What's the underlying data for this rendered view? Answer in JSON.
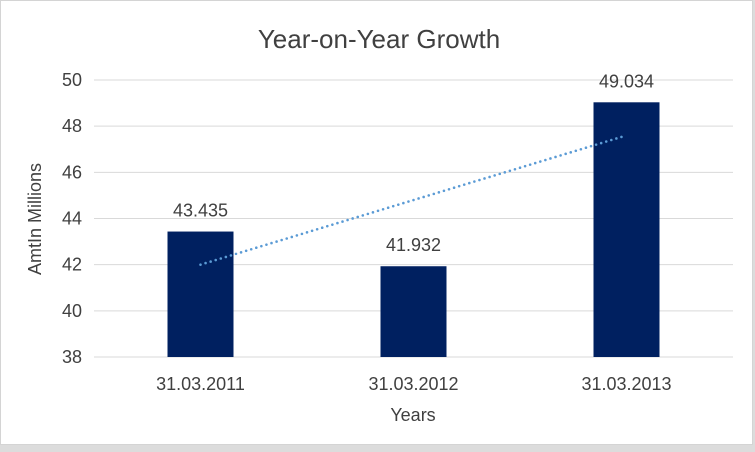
{
  "chart_data": {
    "type": "bar",
    "title": "Year-on-Year Growth",
    "xlabel": "Years",
    "ylabel": "AmtIn Millions",
    "categories": [
      "31.03.2011",
      "31.03.2012",
      "31.03.2013"
    ],
    "values": [
      43.435,
      41.932,
      49.034
    ],
    "value_labels": [
      "43.435",
      "41.932",
      "49.034"
    ],
    "ylim": [
      38,
      50
    ],
    "ytick_step": 2,
    "ytick_labels": [
      "38",
      "40",
      "42",
      "44",
      "46",
      "48",
      "50"
    ],
    "grid": true,
    "legend": "none",
    "trendline": {
      "type": "linear",
      "style": "dotted"
    },
    "colors": {
      "bar": "#002060",
      "trendline": "#5b9bd5",
      "gridline": "#d9d9d9",
      "text": "#404040",
      "chart_background": "#ffffff",
      "chart_border": "#d4d4d4",
      "page_background": "#dcdcdc"
    }
  }
}
